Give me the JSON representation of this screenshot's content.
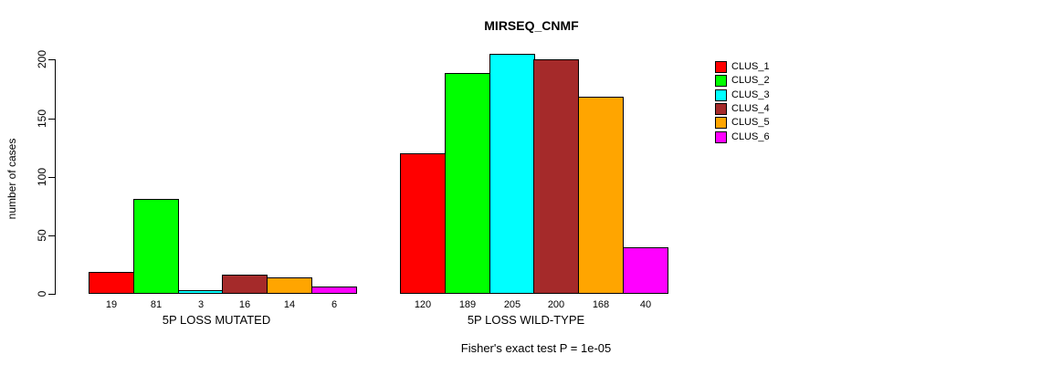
{
  "chart_data": {
    "type": "bar",
    "title": "MIRSEQ_CNMF",
    "ylabel": "number of cases",
    "xlabel": "",
    "annotation": "Fisher's exact test P = 1e-05",
    "yticks": [
      0,
      50,
      100,
      150,
      200
    ],
    "ylim": [
      0,
      205
    ],
    "grid": false,
    "legend_position": "right",
    "value_labels_shown": true,
    "categories": [
      "5P LOSS MUTATED",
      "5P LOSS WILD-TYPE"
    ],
    "series": [
      {
        "name": "CLUS_1",
        "color": "#FF0000",
        "values": [
          19,
          120
        ]
      },
      {
        "name": "CLUS_2",
        "color": "#00FF00",
        "values": [
          81,
          189
        ]
      },
      {
        "name": "CLUS_3",
        "color": "#00FFFF",
        "values": [
          3,
          205
        ]
      },
      {
        "name": "CLUS_4",
        "color": "#A52A2A",
        "values": [
          16,
          200
        ]
      },
      {
        "name": "CLUS_5",
        "color": "#FFA500",
        "values": [
          14,
          168
        ]
      },
      {
        "name": "CLUS_6",
        "color": "#FF00FF",
        "values": [
          6,
          40
        ]
      }
    ],
    "colors": {
      "background": "#FFFFFF",
      "axis": "#000000",
      "text": "#000000"
    }
  }
}
